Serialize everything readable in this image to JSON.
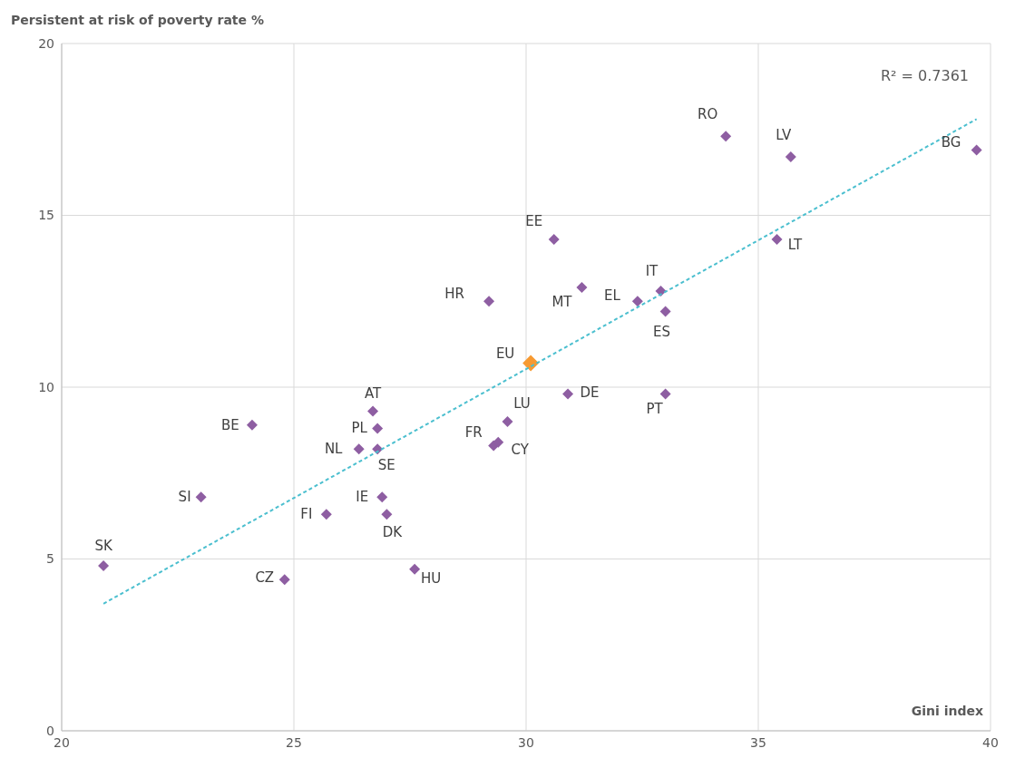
{
  "chart_data": {
    "type": "scatter",
    "ylabel": "Persistent at risk of poverty rate %",
    "xlabel": "Gini index",
    "xlim": [
      20,
      40
    ],
    "xticks": [
      20,
      25,
      30,
      35,
      40
    ],
    "ylim": [
      0,
      20
    ],
    "yticks": [
      0,
      5,
      10,
      15,
      20
    ],
    "grid": true,
    "legend": false,
    "marker": "diamond",
    "series": [
      {
        "color": "#8e5ea2",
        "x": [
          20.9,
          23.0,
          24.1,
          24.8,
          25.7,
          26.4,
          26.8,
          26.8,
          26.7,
          26.9,
          27.0,
          27.6,
          29.2,
          29.3,
          29.4,
          29.6,
          30.6,
          30.9,
          31.2,
          32.4,
          32.9,
          33.0,
          33.0,
          34.3,
          35.4,
          35.7,
          39.7
        ],
        "values": [
          4.8,
          6.8,
          8.9,
          4.4,
          6.3,
          8.2,
          8.2,
          8.8,
          9.3,
          6.8,
          6.3,
          4.7,
          12.5,
          8.3,
          8.4,
          9.0,
          14.3,
          9.8,
          12.9,
          12.5,
          12.8,
          12.2,
          9.8,
          17.3,
          14.3,
          16.7,
          16.9
        ]
      },
      {
        "color": "#f79a32",
        "x": [
          30.1
        ],
        "values": [
          10.7
        ]
      },
      {
        "type": "line",
        "color": "#4bbfcf",
        "line_style": "dashed",
        "marker": "none",
        "x": [
          20.9,
          39.7
        ],
        "values": [
          3.7,
          17.8
        ]
      }
    ],
    "annotations": [
      {
        "text": "SK",
        "x": 20.9,
        "y": 4.8
      },
      {
        "text": "SI",
        "x": 23.0,
        "y": 6.8
      },
      {
        "text": "BE",
        "x": 24.1,
        "y": 8.9
      },
      {
        "text": "CZ",
        "x": 24.8,
        "y": 4.4
      },
      {
        "text": "FI",
        "x": 25.7,
        "y": 6.3
      },
      {
        "text": "NL",
        "x": 26.4,
        "y": 8.2
      },
      {
        "text": "SE",
        "x": 26.8,
        "y": 8.2
      },
      {
        "text": "PL",
        "x": 26.8,
        "y": 8.8
      },
      {
        "text": "AT",
        "x": 26.7,
        "y": 9.3
      },
      {
        "text": "IE",
        "x": 26.9,
        "y": 6.8
      },
      {
        "text": "DK",
        "x": 27.0,
        "y": 6.3
      },
      {
        "text": "HU",
        "x": 27.6,
        "y": 4.7
      },
      {
        "text": "HR",
        "x": 29.2,
        "y": 12.5
      },
      {
        "text": "FR",
        "x": 29.3,
        "y": 8.3
      },
      {
        "text": "CY",
        "x": 29.4,
        "y": 8.4
      },
      {
        "text": "LU",
        "x": 29.6,
        "y": 9.0
      },
      {
        "text": "EE",
        "x": 30.6,
        "y": 14.3
      },
      {
        "text": "DE",
        "x": 30.9,
        "y": 9.8
      },
      {
        "text": "MT",
        "x": 31.2,
        "y": 12.9
      },
      {
        "text": "EL",
        "x": 32.4,
        "y": 12.5
      },
      {
        "text": "IT",
        "x": 32.9,
        "y": 12.8
      },
      {
        "text": "ES",
        "x": 33.0,
        "y": 12.2
      },
      {
        "text": "PT",
        "x": 33.0,
        "y": 9.8
      },
      {
        "text": "RO",
        "x": 34.3,
        "y": 17.3
      },
      {
        "text": "LT",
        "x": 35.4,
        "y": 14.3
      },
      {
        "text": "LV",
        "x": 35.7,
        "y": 16.7
      },
      {
        "text": "BG",
        "x": 39.7,
        "y": 16.9
      },
      {
        "text": "EU",
        "x": 30.1,
        "y": 10.7
      },
      "R² = 0.7361"
    ]
  }
}
